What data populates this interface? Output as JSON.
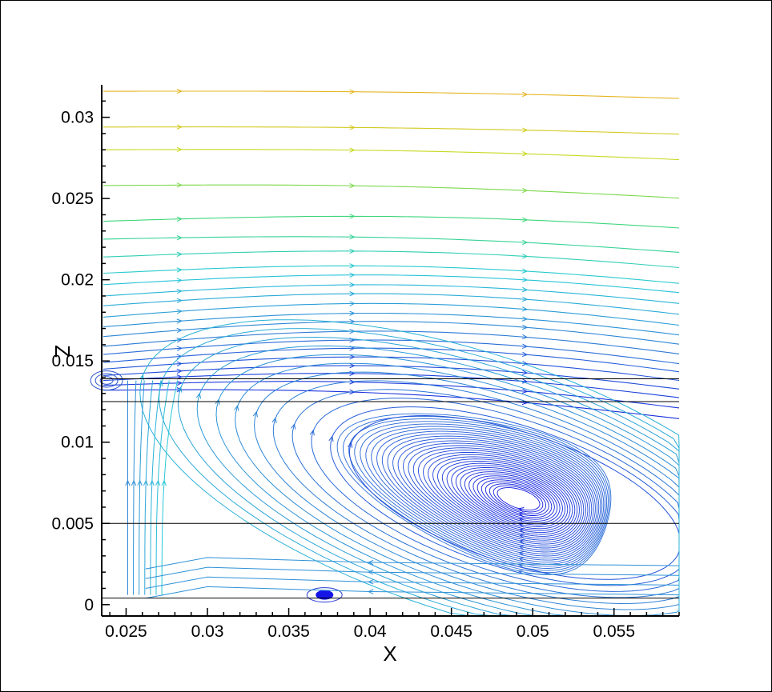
{
  "chart_data": {
    "type": "streamline",
    "title": "",
    "xlabel": "X",
    "ylabel": "Z",
    "xlim": [
      0.0235,
      0.059
    ],
    "ylim": [
      -0.0007,
      0.032
    ],
    "xticks": [
      0.025,
      0.03,
      0.035,
      0.04,
      0.045,
      0.05,
      0.055
    ],
    "xtick_labels": [
      "0.025",
      "0.03",
      "0.035",
      "0.04",
      "0.045",
      "0.05",
      "0.055"
    ],
    "yticks": [
      0,
      0.005,
      0.01,
      0.015,
      0.02,
      0.025,
      0.03
    ],
    "ytick_labels": [
      "0",
      "0.005",
      "0.01",
      "0.015",
      "0.02",
      "0.025",
      "0.03"
    ],
    "reference_lines_z": [
      0.0139,
      0.0125,
      0.005,
      0.0004
    ],
    "vortex_main": {
      "center": [
        0.0492,
        0.0065
      ],
      "semi_axis_x": 0.0085,
      "semi_axis_z": 0.0035
    },
    "vortex_small": {
      "center": [
        0.0372,
        0.0006
      ]
    },
    "vortex_corner": {
      "center": [
        0.0238,
        0.0138
      ]
    },
    "colormap": [
      "#1010e0",
      "#2f7fd6",
      "#28c8d8",
      "#40d870",
      "#c8d820",
      "#e8b020"
    ],
    "streamlines_upper": [
      {
        "z0": 0.0316,
        "z1": 0.0311,
        "arch": 0.0002
      },
      {
        "z0": 0.0294,
        "z1": 0.0289,
        "arch": 0.0002
      },
      {
        "z0": 0.028,
        "z1": 0.0273,
        "arch": 0.0003
      },
      {
        "z0": 0.0258,
        "z1": 0.0249,
        "arch": 0.0004
      },
      {
        "z0": 0.0236,
        "z1": 0.023,
        "arch": 0.0006
      },
      {
        "z0": 0.0225,
        "z1": 0.0215,
        "arch": 0.0006
      },
      {
        "z0": 0.0214,
        "z1": 0.0205,
        "arch": 0.0008
      },
      {
        "z0": 0.0204,
        "z1": 0.0195,
        "arch": 0.0009
      },
      {
        "z0": 0.0197,
        "z1": 0.0189,
        "arch": 0.001
      },
      {
        "z0": 0.019,
        "z1": 0.0182,
        "arch": 0.0011
      },
      {
        "z0": 0.0184,
        "z1": 0.0175,
        "arch": 0.0012
      },
      {
        "z0": 0.0177,
        "z1": 0.0168,
        "arch": 0.0013
      },
      {
        "z0": 0.0171,
        "z1": 0.0162,
        "arch": 0.0013
      },
      {
        "z0": 0.0165,
        "z1": 0.0156,
        "arch": 0.0014
      },
      {
        "z0": 0.0159,
        "z1": 0.015,
        "arch": 0.0014
      },
      {
        "z0": 0.0154,
        "z1": 0.0144,
        "arch": 0.0014
      },
      {
        "z0": 0.0149,
        "z1": 0.0139,
        "arch": 0.0014
      },
      {
        "z0": 0.0145,
        "z1": 0.0134,
        "arch": 0.0013
      },
      {
        "z0": 0.0141,
        "z1": 0.0129,
        "arch": 0.0012
      },
      {
        "z0": 0.0138,
        "z1": 0.0124,
        "arch": 0.0011
      },
      {
        "z0": 0.0135,
        "z1": 0.0118,
        "arch": 0.001
      },
      {
        "z0": 0.0132,
        "z1": 0.0112,
        "arch": 0.0008
      }
    ]
  }
}
